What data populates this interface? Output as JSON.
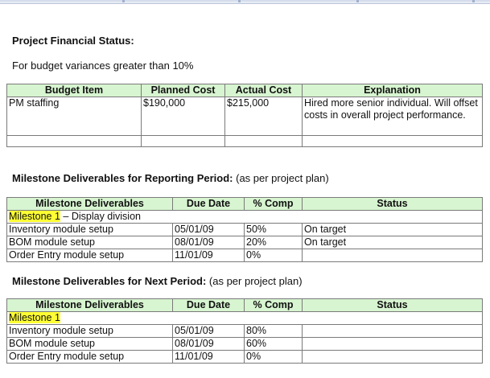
{
  "financial": {
    "title": "Project Financial Status:",
    "subtitle": "For budget variances greater than 10%",
    "headers": [
      "Budget Item",
      "Planned Cost",
      "Actual Cost",
      "Explanation"
    ],
    "rows": [
      [
        "PM staffing",
        "$190,000",
        "$215,000",
        "Hired more senior individual. Will offset costs in overall project performance."
      ],
      [
        "",
        "",
        "",
        ""
      ]
    ]
  },
  "reporting": {
    "title_bold": "Milestone Deliverables for Reporting Period:",
    "title_note": " (as per project plan)",
    "headers": [
      "Milestone Deliverables",
      "Due Date",
      "% Comp",
      "Status"
    ],
    "milestone_label": "Milestone 1",
    "milestone_suffix": " – Display division",
    "rows": [
      [
        "Inventory module setup",
        "05/01/09",
        "50%",
        "On target"
      ],
      [
        "BOM module setup",
        "08/01/09",
        "20%",
        "On target"
      ],
      [
        "Order Entry module setup",
        "11/01/09",
        "0%",
        ""
      ]
    ]
  },
  "next": {
    "title_bold": "Milestone Deliverables for Next Period:",
    "title_note": " (as per project plan)",
    "headers": [
      "Milestone Deliverables",
      "Due Date",
      "% Comp",
      "Status"
    ],
    "milestone_label": "Milestone 1",
    "rows": [
      [
        "Inventory module setup",
        "05/01/09",
        "80%",
        ""
      ],
      [
        "BOM module setup",
        "08/01/09",
        "60%",
        ""
      ],
      [
        "Order Entry module setup",
        "11/01/09",
        "0%",
        ""
      ]
    ]
  }
}
